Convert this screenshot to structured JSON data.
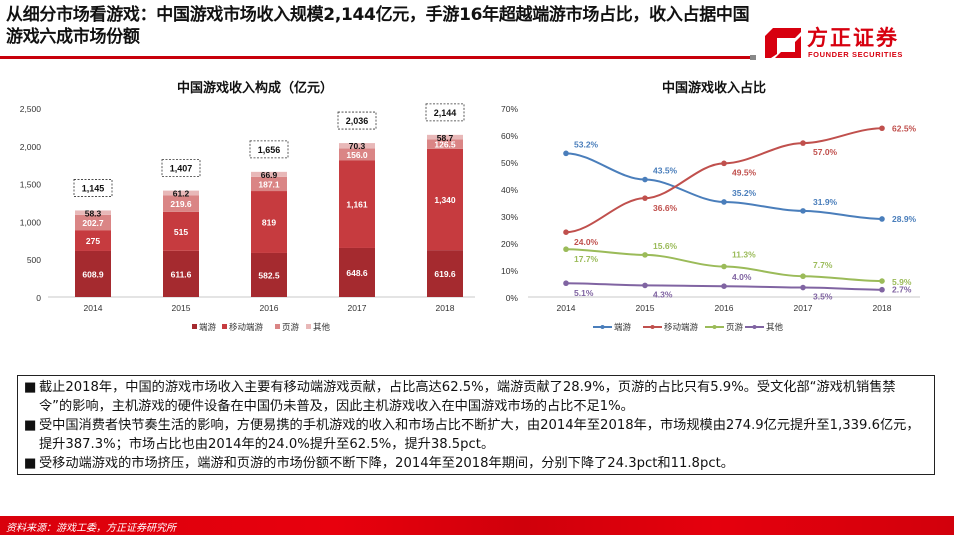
{
  "header": {
    "title": "从细分市场看游戏：中国游戏市场收入规模2,144亿元，手游16年超越端游市场占比，收入占据中国游戏六成市场份额",
    "logo_cn": "方正证券",
    "logo_en": "FOUNDER SECURITIES",
    "brand_color": "#d7000f"
  },
  "chart_data": [
    {
      "type": "bar",
      "stacked": true,
      "title": "中国游戏收入构成（亿元）",
      "categories": [
        "2014",
        "2015",
        "2016",
        "2017",
        "2018"
      ],
      "series": [
        {
          "name": "端游",
          "color": "#a52a2f",
          "values": [
            608.9,
            611.6,
            582.5,
            648.6,
            619.6
          ],
          "labels": [
            "608.9",
            "611.6",
            "582.5",
            "648.6",
            "619.6"
          ]
        },
        {
          "name": "移动端游",
          "color": "#c63b3f",
          "values": [
            275,
            515,
            819,
            1161,
            1340
          ],
          "labels": [
            "275",
            "515",
            "819",
            "1,161",
            "1,340"
          ]
        },
        {
          "name": "页游",
          "color": "#da8585",
          "values": [
            202.7,
            219.6,
            187.1,
            156.0,
            126.5
          ],
          "labels": [
            "202.7",
            "219.6",
            "187.1",
            "156.0",
            "126.5"
          ]
        },
        {
          "name": "其他",
          "color": "#e8b8b8",
          "values": [
            58.3,
            61.2,
            66.9,
            70.3,
            58.7
          ],
          "labels": [
            "58.3",
            "61.2",
            "66.9",
            "70.3",
            "58.7"
          ]
        }
      ],
      "totals": [
        "1,145",
        "1,407",
        "1,656",
        "2,036",
        "2,144"
      ],
      "total_values": [
        1145,
        1407,
        1656,
        2036,
        2144
      ],
      "yticks": [
        "0",
        "500",
        "1,000",
        "1,500",
        "2,000",
        "2,500"
      ],
      "ylim": [
        0,
        2500
      ],
      "xlabel": "",
      "ylabel": "",
      "grid": false,
      "legend": "bottom"
    },
    {
      "type": "line",
      "title": "中国游戏收入占比",
      "categories": [
        "2014",
        "2015",
        "2016",
        "2017",
        "2018"
      ],
      "series": [
        {
          "name": "端游",
          "color": "#4a7ebb",
          "values": [
            53.2,
            43.5,
            35.2,
            31.9,
            28.9
          ],
          "labels": [
            "53.2%",
            "43.5%",
            "35.2%",
            "31.9%",
            "28.9%"
          ]
        },
        {
          "name": "移动端游",
          "color": "#c0504d",
          "values": [
            24.0,
            36.6,
            49.5,
            57.0,
            62.5
          ],
          "labels": [
            "24.0%",
            "36.6%",
            "49.5%",
            "57.0%",
            "62.5%"
          ]
        },
        {
          "name": "页游",
          "color": "#9bbb59",
          "values": [
            17.7,
            15.6,
            11.3,
            7.7,
            5.9
          ],
          "labels": [
            "17.7%",
            "15.6%",
            "11.3%",
            "7.7%",
            "5.9%"
          ]
        },
        {
          "name": "其他",
          "color": "#8064a2",
          "values": [
            5.1,
            4.3,
            4.0,
            3.5,
            2.7
          ],
          "labels": [
            "5.1%",
            "4.3%",
            "4.0%",
            "3.5%",
            "2.7%"
          ]
        }
      ],
      "yticks": [
        "0%",
        "10%",
        "20%",
        "30%",
        "40%",
        "50%",
        "60%",
        "70%"
      ],
      "ylim": [
        0,
        70
      ],
      "xlabel": "",
      "ylabel": "",
      "grid": false,
      "legend": "bottom"
    }
  ],
  "summary": {
    "bullet": "■",
    "items": [
      "截止2018年，中国的游戏市场收入主要有移动端游戏贡献，占比高达62.5%，端游贡献了28.9%，页游的占比只有5.9%。受文化部“游戏机销售禁令”的影响，主机游戏的硬件设备在中国仍未普及，因此主机游戏收入在中国游戏市场的占比不足1%。",
      "受中国消费者快节奏生活的影响，方便易携的手机游戏的收入和市场占比不断扩大，由2014年至2018年，市场规模由274.9亿元提升至1,339.6亿元，提升387.3%；市场占比也由2014年的24.0%提升至62.5%，提升38.5pct。",
      "受移动端游戏的市场挤压，端游和页游的市场份额不断下降，2014年至2018年期间，分别下降了24.3pct和11.8pct。"
    ]
  },
  "footer": {
    "source": "资料来源：游戏工委，方正证券研究所"
  }
}
